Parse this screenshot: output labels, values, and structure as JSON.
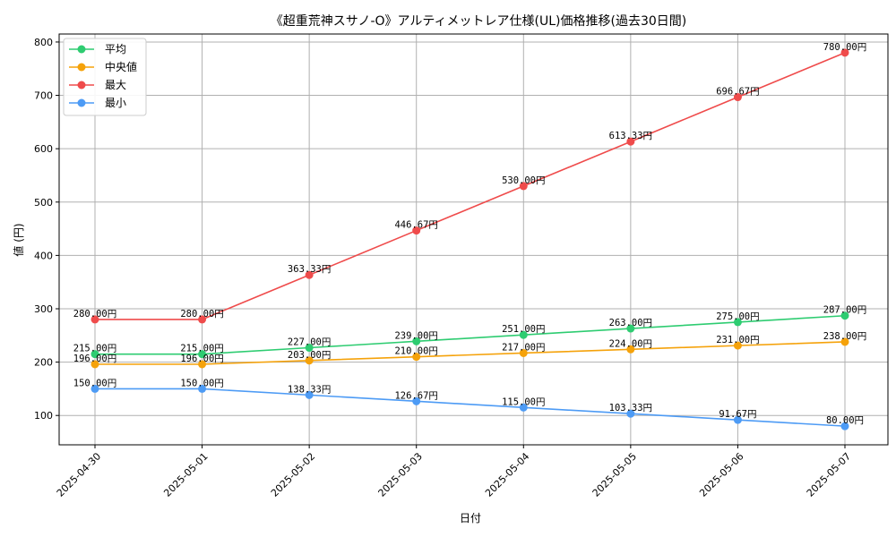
{
  "chart_data": {
    "type": "line",
    "title": "《超重荒神スサノ-O》アルティメットレア仕様(UL)価格推移(過去30日間)",
    "xlabel": "日付",
    "ylabel": "値 (円)",
    "ylim": [
      45,
      815
    ],
    "yticks": [
      100,
      200,
      300,
      400,
      500,
      600,
      700,
      800
    ],
    "grid": true,
    "legend_position": "top-left",
    "value_suffix": "円",
    "categories": [
      "2025-04-30",
      "2025-05-01",
      "2025-05-02",
      "2025-05-03",
      "2025-05-04",
      "2025-05-05",
      "2025-05-06",
      "2025-05-07"
    ],
    "series": [
      {
        "name": "平均",
        "color": "#2ecc71",
        "values": [
          215.0,
          215.0,
          227.0,
          239.0,
          251.0,
          263.0,
          275.0,
          287.0
        ]
      },
      {
        "name": "中央値",
        "color": "#f5a20a",
        "values": [
          196.0,
          196.0,
          203.0,
          210.0,
          217.0,
          224.0,
          231.0,
          238.0
        ]
      },
      {
        "name": "最大",
        "color": "#ef4b4b",
        "values": [
          280.0,
          280.0,
          363.33,
          446.67,
          530.0,
          613.33,
          696.67,
          780.0
        ]
      },
      {
        "name": "最小",
        "color": "#4d9bf5",
        "values": [
          150.0,
          150.0,
          138.33,
          126.67,
          115.0,
          103.33,
          91.67,
          80.0
        ]
      }
    ]
  }
}
